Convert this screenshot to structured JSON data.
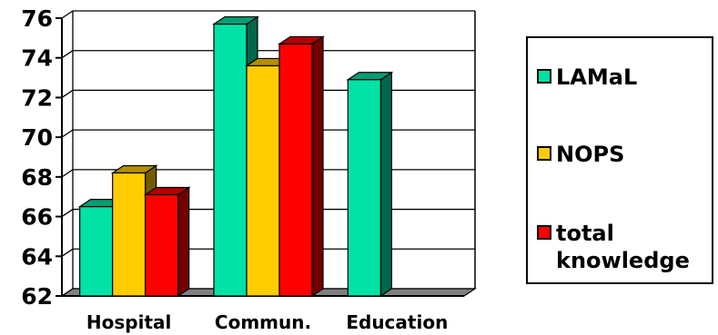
{
  "chart_data": {
    "type": "bar",
    "categories": [
      "Hospital",
      "Commun.",
      "Education"
    ],
    "series": [
      {
        "name": "LAMaL",
        "values": [
          66.5,
          75.7,
          72.9
        ],
        "color": "#00E2A6"
      },
      {
        "name": "NOPS",
        "values": [
          68.2,
          73.6,
          null
        ],
        "color": "#FFCC00"
      },
      {
        "name": "total knowledge",
        "values": [
          67.1,
          74.7,
          null
        ],
        "color": "#FF0000"
      }
    ],
    "yticks": [
      62,
      64,
      66,
      68,
      70,
      72,
      74,
      76
    ],
    "ylim": [
      62,
      76
    ],
    "grid": true,
    "legend_position": "right",
    "style": "3d-clustered-column"
  }
}
